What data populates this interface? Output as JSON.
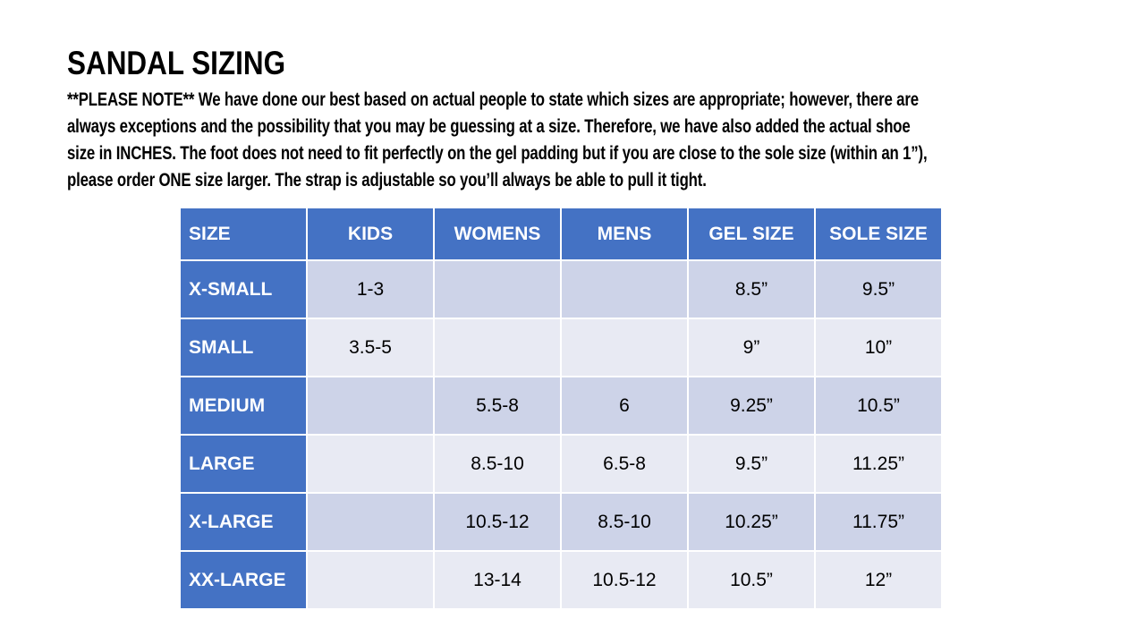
{
  "header": {
    "title": "SANDAL SIZING"
  },
  "note": {
    "lines": [
      "**PLEASE NOTE**   We have done our best based on actual people to state which sizes are appropriate; however, there are",
      "always exceptions and the possibility that you may be guessing at a size.  Therefore, we have also added the actual shoe",
      "size in INCHES.  The foot does not need to fit perfectly on the gel padding but if you are close to the sole size (within an 1”),",
      "please order ONE size larger.  The strap is adjustable so you’ll always be able to pull it tight."
    ]
  },
  "table": {
    "columns": [
      "SIZE",
      "KIDS",
      "WOMENS",
      "MENS",
      "GEL SIZE",
      "SOLE SIZE"
    ],
    "rows": [
      {
        "size": "X-SMALL",
        "kids": "1-3",
        "womens": "",
        "mens": "",
        "gel": "8.5”",
        "sole": "9.5”"
      },
      {
        "size": "SMALL",
        "kids": "3.5-5",
        "womens": "",
        "mens": "",
        "gel": "9”",
        "sole": "10”"
      },
      {
        "size": "MEDIUM",
        "kids": "",
        "womens": "5.5-8",
        "mens": "6",
        "gel": "9.25”",
        "sole": "10.5”"
      },
      {
        "size": "LARGE",
        "kids": "",
        "womens": "8.5-10",
        "mens": "6.5-8",
        "gel": "9.5”",
        "sole": "11.25”"
      },
      {
        "size": "X-LARGE",
        "kids": "",
        "womens": "10.5-12",
        "mens": "8.5-10",
        "gel": "10.25”",
        "sole": "11.75”"
      },
      {
        "size": "XX-LARGE",
        "kids": "",
        "womens": "13-14",
        "mens": "10.5-12",
        "gel": "10.5”",
        "sole": "12”"
      }
    ]
  },
  "colors": {
    "header_blue": "#4472C4",
    "band_dark": "#CDD3E8",
    "band_light": "#E8EAF3",
    "grid_white": "#FFFFFF",
    "text_black": "#000000",
    "header_text": "#FFFFFF",
    "page_bg": "#FFFFFF"
  }
}
